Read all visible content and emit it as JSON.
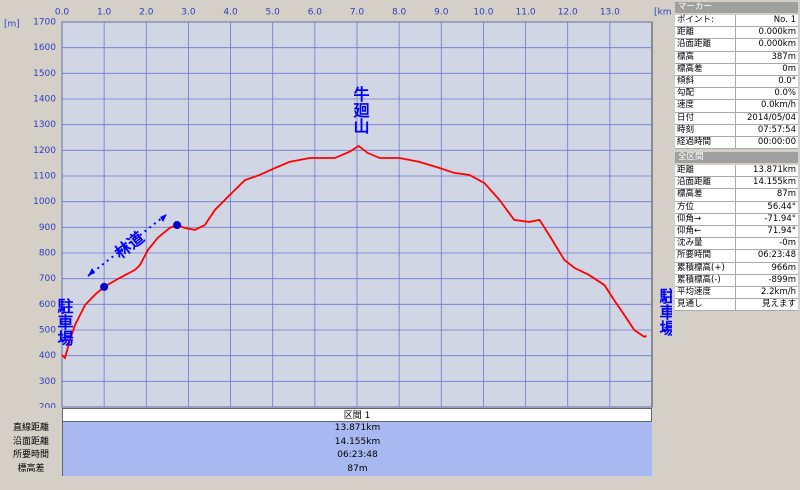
{
  "chart_data": {
    "type": "line",
    "x_unit": "[km]",
    "y_unit": "[m]",
    "x": [
      0,
      0.07,
      0.19,
      0.31,
      0.55,
      0.78,
      1.0,
      1.37,
      1.73,
      1.85,
      2.04,
      2.27,
      2.56,
      2.73,
      2.91,
      3.15,
      3.39,
      3.63,
      3.98,
      4.34,
      4.69,
      5.05,
      5.4,
      5.88,
      6.47,
      6.82,
      7.04,
      7.25,
      7.54,
      8.01,
      8.48,
      8.96,
      9.31,
      9.67,
      10.02,
      10.38,
      10.73,
      11.09,
      11.33,
      11.56,
      11.92,
      12.16,
      12.51,
      12.87,
      13.1,
      13.34,
      13.58,
      13.82,
      13.87
    ],
    "values": [
      403,
      391,
      461,
      520,
      598,
      637,
      668,
      703,
      734,
      753,
      812,
      859,
      898,
      909,
      898,
      890,
      909,
      968,
      1026,
      1084,
      1104,
      1131,
      1155,
      1170,
      1170,
      1194,
      1217,
      1190,
      1170,
      1170,
      1155,
      1131,
      1112,
      1104,
      1073,
      1007,
      929,
      921,
      929,
      870,
      773,
      742,
      714,
      675,
      617,
      559,
      500,
      473,
      478
    ],
    "color": "#ff0000",
    "markers": {
      "x": [
        1.0,
        2.73
      ],
      "values": [
        668,
        909
      ],
      "color": "#0000cc"
    },
    "annotations": [
      "駐車場",
      "牛廻山",
      "林道",
      "駐車場"
    ],
    "xlim": [
      0,
      14
    ],
    "xticks": [
      {
        "value": 0,
        "label": "0.0"
      },
      {
        "value": 1,
        "label": "1.0"
      },
      {
        "value": 2,
        "label": "2.0"
      },
      {
        "value": 3,
        "label": "3.0"
      },
      {
        "value": 4,
        "label": "4.0"
      },
      {
        "value": 5,
        "label": "5.0"
      },
      {
        "value": 6,
        "label": "6.0"
      },
      {
        "value": 7,
        "label": "7.0"
      },
      {
        "value": 8,
        "label": "8.0"
      },
      {
        "value": 9,
        "label": "9.0"
      },
      {
        "value": 10,
        "label": "10.0"
      },
      {
        "value": 11,
        "label": "11.0"
      },
      {
        "value": 12,
        "label": "12.0"
      },
      {
        "value": 13,
        "label": "13.0"
      }
    ],
    "ylim": [
      200,
      1700
    ],
    "yticks": [
      200,
      300,
      400,
      500,
      600,
      700,
      800,
      900,
      1000,
      1100,
      1200,
      1300,
      1400,
      1500,
      1600,
      1700
    ],
    "grid": true
  },
  "section_table": {
    "title": "区間 1",
    "rows": [
      [
        "直線距離",
        "13.871km"
      ],
      [
        "沿面距離",
        "14.155km"
      ],
      [
        "所要時間",
        "06:23:48"
      ],
      [
        "標高差",
        "87m"
      ]
    ]
  },
  "marker_panel": {
    "title": "マーカー",
    "rows": [
      [
        "ポイント:",
        "No. 1"
      ],
      [
        "距離",
        "0.000km"
      ],
      [
        "沿面距離",
        "0.000km"
      ],
      [
        "標高",
        "387m"
      ],
      [
        "標高差",
        "0m"
      ],
      [
        "傾斜",
        "0.0°"
      ],
      [
        "勾配",
        "0.0%"
      ],
      [
        "速度",
        "0.0km/h"
      ],
      [
        "日付",
        "2014/05/04"
      ],
      [
        "時刻",
        "07:57:54"
      ],
      [
        "経過時間",
        "00:00:00"
      ]
    ]
  },
  "total_panel": {
    "title": "全区間",
    "rows": [
      [
        "距離",
        "13.871km"
      ],
      [
        "沿面距離",
        "14.155km"
      ],
      [
        "標高差",
        "87m"
      ],
      [
        "方位",
        "56.44°"
      ],
      [
        "仰角→",
        "-71.94°"
      ],
      [
        "仰角←",
        "71.94°"
      ],
      [
        "沈み量",
        "-0m"
      ],
      [
        "所要時間",
        "06:23:48"
      ],
      [
        "累積標高(+)",
        "966m"
      ],
      [
        "累積標高(-)",
        "-899m"
      ],
      [
        "平均速度",
        "2.2km/h"
      ],
      [
        "見通し",
        "見えます"
      ]
    ]
  }
}
